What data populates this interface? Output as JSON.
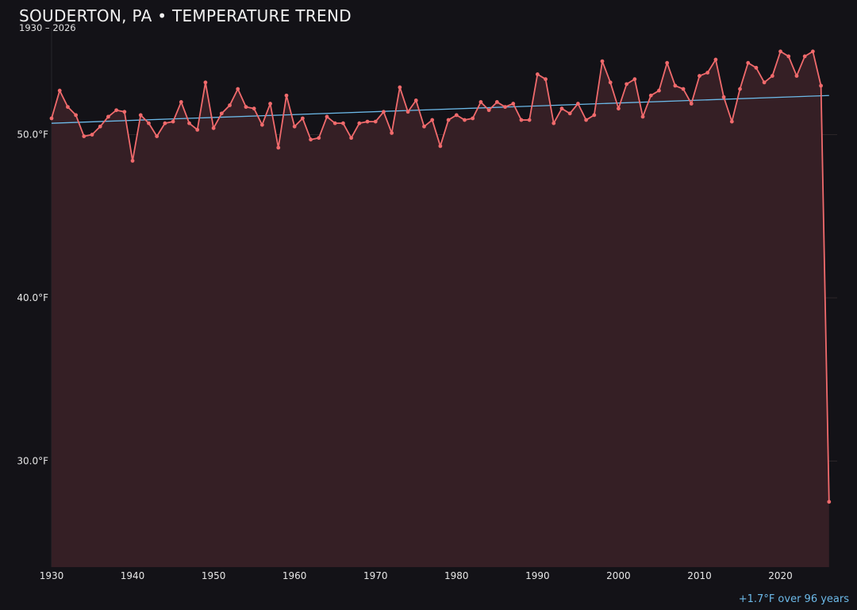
{
  "chart_data": {
    "type": "line",
    "title": "SOUDERTON, PA • TEMPERATURE TREND",
    "subtitle": "1930 – 2026",
    "annotation": "+1.7°F over 96 years",
    "xlim": [
      1930,
      2027
    ],
    "ylim": [
      23.5,
      56.5
    ],
    "x_ticks": [
      1930,
      1940,
      1950,
      1960,
      1970,
      1980,
      1990,
      2000,
      2010,
      2020
    ],
    "y_ticks": [
      {
        "value": 30,
        "label": "30.0°F"
      },
      {
        "value": 40,
        "label": "40.0°F"
      },
      {
        "value": 50,
        "label": "50.0°F"
      }
    ],
    "grid": true,
    "colors": {
      "series": "#f06a6c",
      "trend": "#6cb9e8",
      "fill": "#351f25",
      "grid": "#2c2528",
      "background": "#131217"
    },
    "series": [
      {
        "x": [
          1930,
          1931,
          1932,
          1933,
          1934,
          1935,
          1936,
          1937,
          1938,
          1939,
          1940,
          1941,
          1942,
          1943,
          1944,
          1945,
          1946,
          1947,
          1948,
          1949,
          1950,
          1951,
          1952,
          1953,
          1954,
          1955,
          1956,
          1957,
          1958,
          1959,
          1960,
          1961,
          1962,
          1963,
          1964,
          1965,
          1966,
          1967,
          1968,
          1969,
          1970,
          1971,
          1972,
          1973,
          1974,
          1975,
          1976,
          1977,
          1978,
          1979,
          1980,
          1981,
          1982,
          1983,
          1984,
          1985,
          1986,
          1987,
          1988,
          1989,
          1990,
          1991,
          1992,
          1993,
          1994,
          1995,
          1996,
          1997,
          1998,
          1999,
          2000,
          2001,
          2002,
          2003,
          2004,
          2005,
          2006,
          2007,
          2008,
          2009,
          2010,
          2011,
          2012,
          2013,
          2014,
          2015,
          2016,
          2017,
          2018,
          2019,
          2020,
          2021,
          2022,
          2023,
          2024,
          2025,
          2026
        ],
        "values": [
          51.0,
          52.7,
          51.7,
          51.2,
          49.9,
          50.0,
          50.5,
          51.1,
          51.5,
          51.4,
          48.4,
          51.2,
          50.7,
          49.9,
          50.7,
          50.8,
          52.0,
          50.7,
          50.3,
          53.2,
          50.4,
          51.3,
          51.8,
          52.8,
          51.7,
          51.6,
          50.6,
          51.9,
          49.2,
          52.4,
          50.5,
          51.0,
          49.7,
          49.8,
          51.1,
          50.7,
          50.7,
          49.8,
          50.7,
          50.8,
          50.8,
          51.4,
          50.1,
          52.9,
          51.4,
          52.1,
          50.5,
          50.9,
          49.3,
          50.9,
          51.2,
          50.9,
          51.0,
          52.0,
          51.5,
          52.0,
          51.7,
          51.9,
          50.9,
          50.9,
          53.7,
          53.4,
          50.7,
          51.6,
          51.3,
          51.9,
          50.9,
          51.2,
          54.5,
          53.2,
          51.6,
          53.1,
          53.4,
          51.1,
          52.4,
          52.7,
          54.4,
          53.0,
          52.8,
          51.9,
          53.6,
          53.8,
          54.6,
          52.3,
          50.8,
          52.8,
          54.4,
          54.1,
          53.2,
          53.6,
          55.1,
          54.8,
          53.6,
          54.8,
          55.1,
          53.0,
          27.5
        ]
      }
    ],
    "trend": {
      "x": [
        1930,
        2026
      ],
      "values": [
        50.7,
        52.4
      ]
    }
  }
}
